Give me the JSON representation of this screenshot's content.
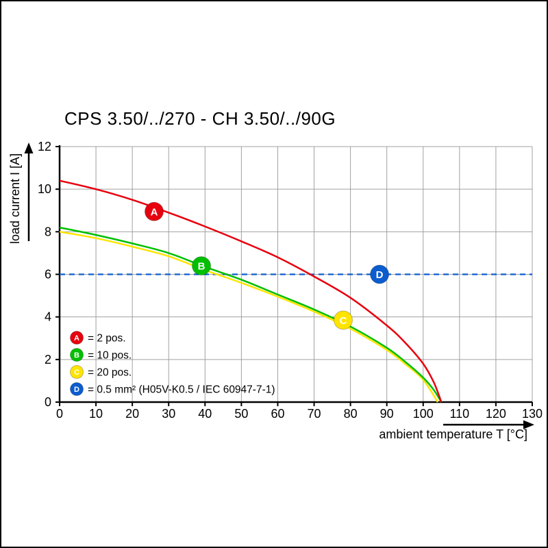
{
  "chart_data": {
    "type": "line",
    "title": "CPS 3.50/../270 - CH 3.50/../90G",
    "xlabel": "ambient temperature T [°C]",
    "ylabel": "load current I [A]",
    "xlim": [
      0,
      130
    ],
    "ylim": [
      0,
      12
    ],
    "xticks": [
      0,
      10,
      20,
      30,
      40,
      50,
      60,
      70,
      80,
      90,
      100,
      110,
      120,
      130
    ],
    "yticks": [
      0,
      2,
      4,
      6,
      8,
      10,
      12
    ],
    "grid": true,
    "grid_color": "#a0a0a0",
    "axis_color": "#000000",
    "legend_position": "lower-left-inside",
    "series": [
      {
        "id": "A",
        "label": "= 2 pos.",
        "color": "#e7000e",
        "line_style": "solid",
        "marker": {
          "x": 26,
          "y": 8.95
        },
        "points": [
          [
            0,
            10.4
          ],
          [
            10,
            10.0
          ],
          [
            20,
            9.5
          ],
          [
            30,
            8.9
          ],
          [
            40,
            8.25
          ],
          [
            50,
            7.55
          ],
          [
            60,
            6.8
          ],
          [
            70,
            5.9
          ],
          [
            80,
            4.9
          ],
          [
            90,
            3.6
          ],
          [
            95,
            2.8
          ],
          [
            100,
            1.8
          ],
          [
            103,
            0.9
          ],
          [
            105,
            0
          ]
        ]
      },
      {
        "id": "B",
        "label": "= 10 pos.",
        "color": "#00bf00",
        "line_style": "solid",
        "marker": {
          "x": 39,
          "y": 6.4
        },
        "points": [
          [
            0,
            8.2
          ],
          [
            10,
            7.85
          ],
          [
            20,
            7.45
          ],
          [
            30,
            7.0
          ],
          [
            40,
            6.35
          ],
          [
            50,
            5.75
          ],
          [
            60,
            5.05
          ],
          [
            70,
            4.35
          ],
          [
            80,
            3.55
          ],
          [
            90,
            2.55
          ],
          [
            95,
            1.9
          ],
          [
            100,
            1.15
          ],
          [
            103,
            0.55
          ],
          [
            105,
            0
          ]
        ]
      },
      {
        "id": "C",
        "label": "= 20 pos.",
        "color": "#ffe400",
        "line_style": "solid",
        "marker": {
          "x": 78,
          "y": 3.85
        },
        "points": [
          [
            0,
            8.0
          ],
          [
            10,
            7.7
          ],
          [
            20,
            7.3
          ],
          [
            30,
            6.85
          ],
          [
            40,
            6.2
          ],
          [
            50,
            5.6
          ],
          [
            60,
            4.95
          ],
          [
            70,
            4.25
          ],
          [
            80,
            3.45
          ],
          [
            90,
            2.45
          ],
          [
            95,
            1.8
          ],
          [
            100,
            1.05
          ],
          [
            104,
            0
          ]
        ]
      },
      {
        "id": "D",
        "label": "= 0.5 mm² (H05V-K0.5 / IEC 60947-7-1)",
        "color": "#0b5cce",
        "line_style": "dashed",
        "marker": {
          "x": 88,
          "y": 6
        },
        "points": [
          [
            0,
            6
          ],
          [
            130,
            6
          ]
        ]
      }
    ]
  }
}
